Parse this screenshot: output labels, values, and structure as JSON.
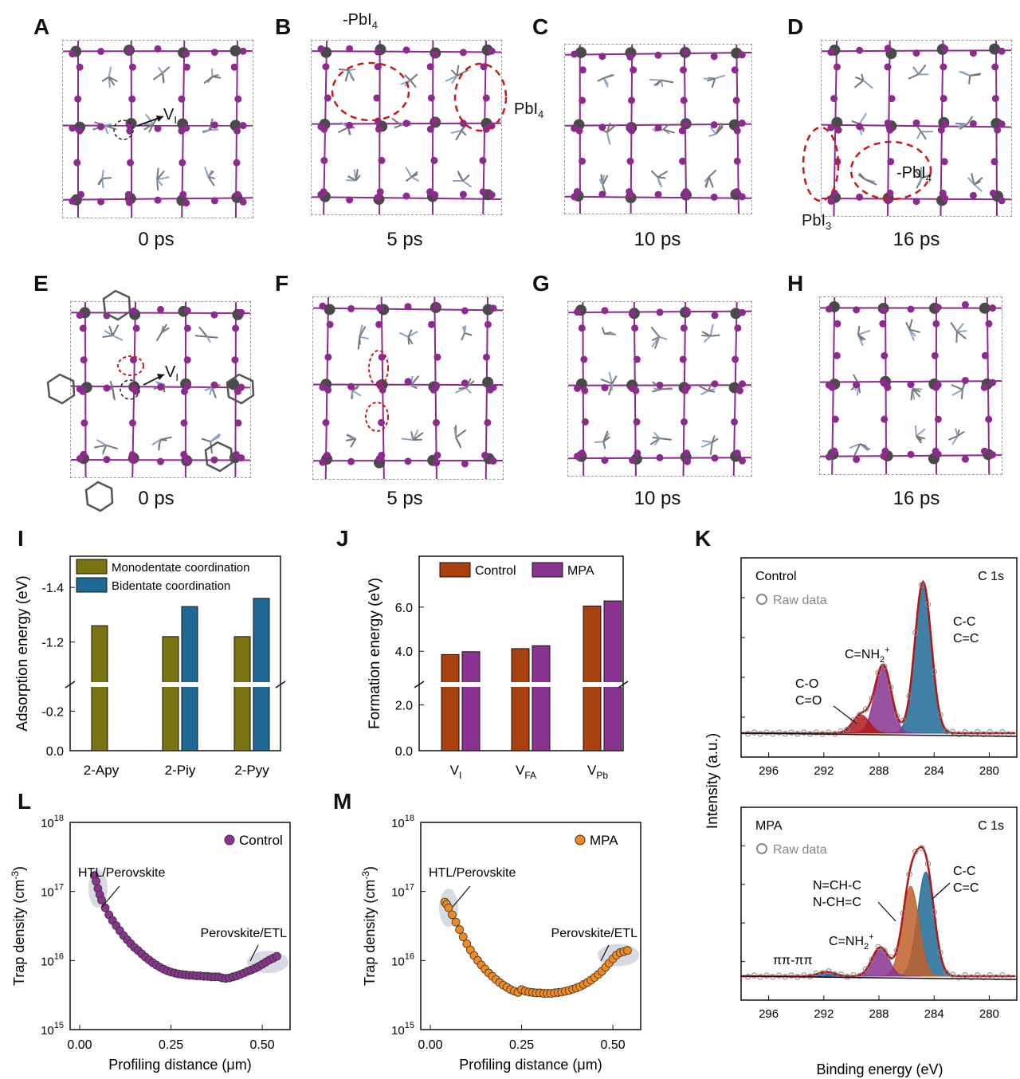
{
  "panels": {
    "A": {
      "letter": "A",
      "time": "0 ps",
      "labels": [
        "V",
        "I"
      ]
    },
    "B": {
      "letter": "B",
      "time": "5 ps",
      "labels": [
        "-PbI",
        "4",
        "PbI",
        "4"
      ]
    },
    "C": {
      "letter": "C",
      "time": "10 ps"
    },
    "D": {
      "letter": "D",
      "time": "16 ps",
      "labels": [
        "-PbI",
        "4",
        "PbI",
        "3"
      ]
    },
    "E": {
      "letter": "E",
      "time": "0 ps",
      "labels": [
        "V",
        "I"
      ]
    },
    "F": {
      "letter": "F",
      "time": "5 ps"
    },
    "G": {
      "letter": "G",
      "time": "10 ps"
    },
    "H": {
      "letter": "H",
      "time": "16 ps"
    },
    "I": {
      "letter": "I"
    },
    "J": {
      "letter": "J"
    },
    "K": {
      "letter": "K"
    },
    "L": {
      "letter": "L"
    },
    "M": {
      "letter": "M"
    }
  },
  "colors": {
    "olive": "#7a7410",
    "blue": "#1f6a94",
    "rust": "#a8410e",
    "purple": "#8a3391",
    "orange": "#f28a1e",
    "lattice_purple": "#8e2a8f",
    "pb_gray": "#4a4a4a",
    "fit_red": "#b01818"
  },
  "chart_data": [
    {
      "id": "I",
      "type": "bar",
      "categories": [
        "2-Apy",
        "2-Piy",
        "2-Pyy"
      ],
      "series": [
        {
          "name": "Monodentate coordination",
          "values": [
            -1.26,
            -1.22,
            -1.22
          ]
        },
        {
          "name": "Bidentate coordination",
          "values": [
            null,
            -1.33,
            -1.36
          ]
        }
      ],
      "ylabel": "Adsorption energy (eV)",
      "yticks": [
        "-1.4",
        "-1.2",
        "-0.2",
        "0.0"
      ],
      "axis_break": true,
      "legend": "top"
    },
    {
      "id": "J",
      "type": "bar",
      "categories": [
        "V_I",
        "V_FA",
        "V_Pb"
      ],
      "category_main": [
        "V",
        "V",
        "V"
      ],
      "category_sub": [
        "I",
        "FA",
        "Pb"
      ],
      "series": [
        {
          "name": "Control",
          "values": [
            3.85,
            4.12,
            6.05
          ]
        },
        {
          "name": "MPA",
          "values": [
            3.98,
            4.25,
            6.28
          ]
        }
      ],
      "ylabel": "Formation energy (eV)",
      "yticks": [
        "0.0",
        "2.0",
        "4.0",
        "6.0"
      ],
      "axis_break": true,
      "legend": "top"
    },
    {
      "id": "K-top",
      "type": "line",
      "title": "Control",
      "corner_label": "C 1s",
      "legend_entry": "Raw data",
      "xlabel": "Binding energy (eV)",
      "ylabel": "Intensity (a.u.)",
      "xticks": [
        296,
        292,
        288,
        284,
        280
      ],
      "xlim": [
        298,
        278
      ],
      "peaks": [
        {
          "label": "C-C / C=C",
          "center": 284.8,
          "height": 1.0
        },
        {
          "label": "C=NH2+",
          "center": 287.7,
          "height": 0.45
        },
        {
          "label": "C-O / C=O",
          "center": 289.3,
          "height": 0.12
        }
      ],
      "annotations": [
        "C-C",
        "C=C",
        "C=NH",
        "2",
        "+",
        "C-O",
        "C=O"
      ]
    },
    {
      "id": "K-bottom",
      "type": "line",
      "title": "MPA",
      "corner_label": "C 1s",
      "legend_entry": "Raw data",
      "xlabel": "Binding energy (eV)",
      "xticks": [
        296,
        292,
        288,
        284,
        280
      ],
      "xlim": [
        298,
        278
      ],
      "peaks": [
        {
          "label": "C-C / C=C",
          "center": 284.6,
          "height": 0.72
        },
        {
          "label": "N=CH-C / N-CH=C",
          "center": 285.7,
          "height": 0.62
        },
        {
          "label": "C=NH2+",
          "center": 287.9,
          "height": 0.2
        },
        {
          "label": "π-π",
          "center": 291.8,
          "height": 0.03
        }
      ],
      "annotations": [
        "C-C",
        "C=C",
        "N=CH-C",
        "N-CH=C",
        "C=NH",
        "2",
        "+",
        "ππ-ππ"
      ]
    },
    {
      "id": "L",
      "type": "scatter",
      "series_name": "Control",
      "xlabel": "Profiling distance (μm)",
      "ylabel": "Trap density (cm",
      "ylabel_sup": "-3",
      "ylabel_end": ")",
      "xticks": [
        "0.00",
        "0.25",
        "0.50"
      ],
      "yscale": "log",
      "ylim": [
        1000000000000000.0,
        1e+18
      ],
      "annotations": [
        "HTL/Perovskite",
        "Perovskite/ETL"
      ],
      "x": [
        0.04,
        0.045,
        0.05,
        0.055,
        0.06,
        0.07,
        0.08,
        0.09,
        0.1,
        0.11,
        0.12,
        0.13,
        0.14,
        0.15,
        0.16,
        0.17,
        0.18,
        0.19,
        0.2,
        0.21,
        0.22,
        0.23,
        0.24,
        0.25,
        0.26,
        0.27,
        0.28,
        0.29,
        0.3,
        0.31,
        0.32,
        0.33,
        0.34,
        0.35,
        0.36,
        0.37,
        0.38,
        0.39,
        0.4,
        0.41,
        0.42,
        0.43,
        0.44,
        0.45,
        0.46,
        0.47,
        0.48,
        0.49,
        0.5,
        0.51,
        0.52,
        0.53,
        0.54
      ],
      "y": [
        1.7e+17,
        1.4e+17,
        1.1e+17,
        9e+16,
        7.5e+16,
        5.8e+16,
        4.6e+16,
        3.8e+16,
        3.2e+16,
        2.7e+16,
        2.3e+16,
        2e+16,
        1.75e+16,
        1.55e+16,
        1.4e+16,
        1.25e+16,
        1.12e+16,
        1.02e+16,
        9300000000000000.0,
        8600000000000000.0,
        8000000000000000.0,
        7500000000000000.0,
        7100000000000000.0,
        6800000000000000.0,
        6600000000000000.0,
        6400000000000000.0,
        6300000000000000.0,
        6200000000000000.0,
        6100000000000000.0,
        6100000000000000.0,
        6000000000000000.0,
        6000000000000000.0,
        5900000000000000.0,
        5900000000000000.0,
        5800000000000000.0,
        5800000000000000.0,
        5800000000000000.0,
        5600000000000000.0,
        5500000000000000.0,
        5600000000000000.0,
        5800000000000000.0,
        6000000000000000.0,
        6300000000000000.0,
        6600000000000000.0,
        7000000000000000.0,
        7300000000000000.0,
        7700000000000000.0,
        8200000000000000.0,
        8800000000000000.0,
        9500000000000000.0,
        1.02e+16,
        1.08e+16,
        1.15e+16
      ]
    },
    {
      "id": "M",
      "type": "scatter",
      "series_name": "MPA",
      "xlabel": "Profiling distance (μm)",
      "ylabel": "Trap density (cm",
      "ylabel_sup": "-3",
      "ylabel_end": ")",
      "xticks": [
        "0.00",
        "0.25",
        "0.50"
      ],
      "yscale": "log",
      "ylim": [
        1000000000000000.0,
        1e+18
      ],
      "annotations": [
        "HTL/Perovskite",
        "Perovskite/ETL"
      ],
      "x": [
        0.04,
        0.045,
        0.05,
        0.06,
        0.07,
        0.08,
        0.09,
        0.1,
        0.11,
        0.12,
        0.13,
        0.14,
        0.15,
        0.16,
        0.17,
        0.18,
        0.19,
        0.2,
        0.21,
        0.22,
        0.23,
        0.24,
        0.25,
        0.26,
        0.27,
        0.28,
        0.29,
        0.3,
        0.31,
        0.32,
        0.33,
        0.34,
        0.35,
        0.36,
        0.37,
        0.38,
        0.39,
        0.4,
        0.41,
        0.42,
        0.43,
        0.44,
        0.45,
        0.46,
        0.47,
        0.48,
        0.49,
        0.5,
        0.51,
        0.52,
        0.53,
        0.54
      ],
      "y": [
        7e+16,
        6.5e+16,
        5.8e+16,
        4.6e+16,
        3.6e+16,
        2.8e+16,
        2.2e+16,
        1.75e+16,
        1.42e+16,
        1.18e+16,
        1e+16,
        8600000000000000.0,
        7500000000000000.0,
        6600000000000000.0,
        5900000000000000.0,
        5300000000000000.0,
        4800000000000000.0,
        4400000000000000.0,
        4100000000000000.0,
        3800000000000000.0,
        3600000000000000.0,
        3450000000000000.0,
        3800000000000000.0,
        3600000000000000.0,
        3500000000000000.0,
        3450000000000000.0,
        3400000000000000.0,
        3400000000000000.0,
        3350000000000000.0,
        3350000000000000.0,
        3350000000000000.0,
        3400000000000000.0,
        3450000000000000.0,
        3500000000000000.0,
        3600000000000000.0,
        3700000000000000.0,
        3850000000000000.0,
        4000000000000000.0,
        4200000000000000.0,
        4500000000000000.0,
        4800000000000000.0,
        5200000000000000.0,
        5700000000000000.0,
        6300000000000000.0,
        7000000000000000.0,
        8000000000000000.0,
        9200000000000000.0,
        1.06e+16,
        1.2e+16,
        1.3e+16,
        1.35e+16,
        1.4e+16
      ]
    }
  ]
}
